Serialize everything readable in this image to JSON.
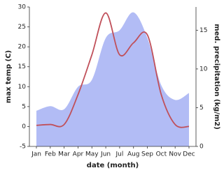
{
  "chart_data": {
    "type": "line-area",
    "x_label": "date (month)",
    "y_label": "max temp (C)",
    "y2_label": "med. precipitation (kg/m2)",
    "categories": [
      "Jan",
      "Feb",
      "Mar",
      "Apr",
      "May",
      "Jun",
      "Jul",
      "Aug",
      "Sep",
      "Oct",
      "Nov",
      "Dec"
    ],
    "series": [
      {
        "name": "med. precipitation",
        "axis": "y2",
        "kind": "area",
        "color": "#b2bcf5",
        "values": [
          4.6,
          5.2,
          4.8,
          7.7,
          8.6,
          14,
          15,
          17.3,
          14,
          7.9,
          6,
          6.9
        ]
      },
      {
        "name": "max temp",
        "axis": "y",
        "kind": "line",
        "color": "#c0505a",
        "values": [
          0.3,
          0.5,
          0.5,
          8,
          18,
          28.5,
          18,
          21,
          23,
          8,
          0.5,
          0
        ]
      }
    ],
    "ylim": [
      -5,
      30
    ],
    "yticks": [
      -5,
      0,
      5,
      10,
      15,
      20,
      25,
      30
    ],
    "y2lim": [
      0,
      18
    ],
    "y2ticks": [
      0,
      5,
      10,
      15
    ]
  }
}
